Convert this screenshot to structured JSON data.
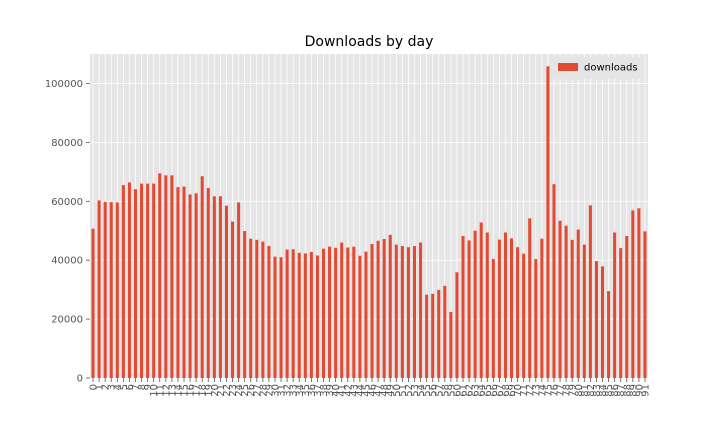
{
  "chart_data": {
    "type": "bar",
    "title": "Downloads by day",
    "xlabel": "",
    "ylabel": "",
    "ylim": [
      0,
      110000
    ],
    "yticks": [
      0,
      20000,
      40000,
      60000,
      80000,
      100000
    ],
    "grid": true,
    "legend_placement": "top-right",
    "colors": {
      "bar": "#e24a33",
      "plot_bg": "#e5e5e5",
      "grid": "#ffffff"
    },
    "categories": [
      0,
      1,
      2,
      3,
      4,
      5,
      6,
      7,
      8,
      9,
      10,
      11,
      12,
      13,
      14,
      15,
      16,
      17,
      18,
      19,
      20,
      21,
      22,
      23,
      24,
      25,
      26,
      27,
      28,
      29,
      30,
      31,
      32,
      33,
      34,
      35,
      36,
      37,
      38,
      39,
      40,
      41,
      42,
      43,
      44,
      45,
      46,
      47,
      48,
      49,
      50,
      51,
      52,
      53,
      54,
      55,
      56,
      57,
      58,
      59,
      60,
      61,
      62,
      63,
      64,
      65,
      66,
      67,
      68,
      69,
      70,
      71,
      72,
      73,
      74,
      75,
      76,
      77,
      78,
      79,
      80,
      81,
      82,
      83,
      84,
      85,
      86,
      87,
      88,
      89,
      90,
      91
    ],
    "series": [
      {
        "name": "downloads",
        "values": [
          50700,
          60300,
          59800,
          59700,
          59600,
          65500,
          66400,
          64100,
          66000,
          66000,
          66000,
          69500,
          68800,
          68800,
          64800,
          65000,
          62300,
          62700,
          68500,
          64500,
          61700,
          61700,
          58500,
          53100,
          59600,
          49900,
          47300,
          46900,
          46300,
          44800,
          41200,
          41000,
          43600,
          43700,
          42500,
          42300,
          42800,
          41600,
          43900,
          44600,
          44200,
          46000,
          44300,
          44600,
          41500,
          42900,
          45500,
          46600,
          47200,
          48600,
          45300,
          44800,
          44400,
          44800,
          46000,
          28300,
          28600,
          29900,
          31300,
          22400,
          35900,
          48200,
          46700,
          50000,
          52800,
          49400,
          40400,
          47000,
          49400,
          47400,
          44400,
          42200,
          54200,
          40400,
          47300,
          105800,
          65800,
          53400,
          51700,
          46900,
          50400,
          45300,
          58600,
          39700,
          37900,
          29500,
          49400,
          44100,
          48200,
          56900,
          57600,
          49800
        ]
      }
    ]
  }
}
